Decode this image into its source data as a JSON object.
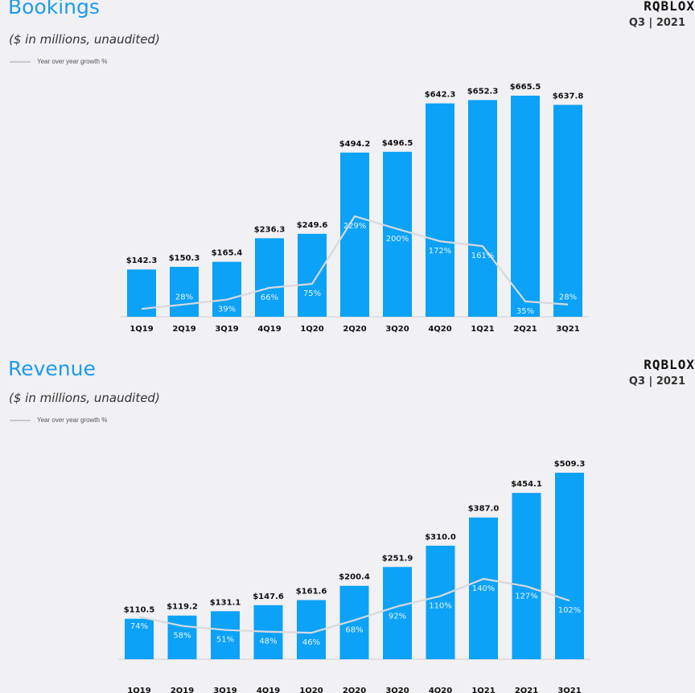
{
  "panels": [
    {
      "title": "Bookings",
      "subtitle": "($ in millions,  unaudited)",
      "legend_label": "Year over year growth %",
      "brand_logo": "RQBLOX",
      "brand_period": "Q3 | 2021"
    },
    {
      "title": "Revenue",
      "subtitle": "($ in millions,  unaudited)",
      "legend_label": "Year over year growth %",
      "brand_logo": "RQBLOX",
      "brand_period": "Q3 | 2021"
    }
  ],
  "colors": {
    "bar": "#0ba2f7",
    "growth_line": "#d9d9dd",
    "title": "#1e9be9",
    "background": "#f1f0f3"
  },
  "chart_data": [
    {
      "type": "bar",
      "title": "Bookings",
      "categories": [
        "1Q19",
        "2Q19",
        "3Q19",
        "4Q19",
        "1Q20",
        "2Q20",
        "3Q20",
        "4Q20",
        "1Q21",
        "2Q21",
        "3Q21"
      ],
      "values": [
        142.3,
        150.3,
        165.4,
        236.3,
        249.6,
        494.2,
        496.5,
        642.3,
        652.3,
        665.5,
        637.8
      ],
      "value_labels": [
        "$142.3",
        "$150.3",
        "$165.4",
        "$236.3",
        "$249.6",
        "$494.2",
        "$496.5",
        "$642.3",
        "$652.3",
        "$665.5",
        "$637.8"
      ],
      "growth": [
        null,
        28,
        39,
        66,
        75,
        229,
        200,
        172,
        161,
        35,
        28
      ],
      "growth_labels": [
        "",
        "28%",
        "39%",
        "66%",
        "75%",
        "229%",
        "200%",
        "172%",
        "161%",
        "35%",
        "28%"
      ],
      "growth_line": [
        18,
        28,
        39,
        66,
        75,
        229,
        200,
        172,
        161,
        35,
        28
      ],
      "ylim": [
        0,
        700
      ],
      "growth_ylim": [
        0,
        300
      ],
      "legend": "top-left"
    },
    {
      "type": "bar",
      "title": "Revenue",
      "categories": [
        "1Q19",
        "2Q19",
        "3Q19",
        "4Q19",
        "1Q20",
        "2Q20",
        "3Q20",
        "4Q20",
        "1Q21",
        "2Q21",
        "3Q21"
      ],
      "values": [
        110.5,
        119.2,
        131.1,
        147.6,
        161.6,
        200.4,
        251.9,
        310.0,
        387.0,
        454.1,
        509.3
      ],
      "value_labels": [
        "$110.5",
        "$119.2",
        "$131.1",
        "$147.6",
        "$161.6",
        "$200.4",
        "$251.9",
        "$310.0",
        "$387.0",
        "$454.1",
        "$509.3"
      ],
      "growth": [
        74,
        58,
        51,
        48,
        46,
        68,
        92,
        110,
        140,
        127,
        102
      ],
      "growth_labels": [
        "74%",
        "58%",
        "51%",
        "48%",
        "46%",
        "68%",
        "92%",
        "110%",
        "140%",
        "127%",
        "102%"
      ],
      "growth_line": [
        74,
        58,
        51,
        48,
        46,
        68,
        92,
        110,
        140,
        127,
        102
      ],
      "ylim": [
        0,
        560
      ],
      "growth_ylim": [
        0,
        250
      ],
      "legend": "top-left"
    }
  ]
}
